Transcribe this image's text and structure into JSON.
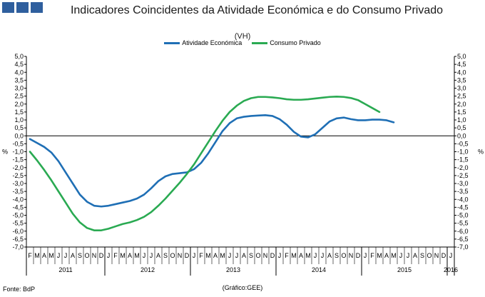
{
  "chart_data": {
    "type": "line",
    "title": "Indicadores Coincidentes da Atividade Económica e do Consumo Privado",
    "subtitle": "(VH)",
    "ylabel_left": "%",
    "ylabel_right": "%",
    "ylim": [
      -7.0,
      5.0
    ],
    "ytick_step": 0.5,
    "ytick_labels": [
      "5,0",
      "4,5",
      "4,0",
      "3,5",
      "3,0",
      "2,5",
      "2,0",
      "1,5",
      "1,0",
      "0,5",
      "0,0",
      "-0,5",
      "-1,0",
      "-1,5",
      "-2,0",
      "-2,5",
      "-3,0",
      "-3,5",
      "-4,0",
      "-4,5",
      "-5,0",
      "-5,5",
      "-6,0",
      "-6,5",
      "-7,0"
    ],
    "month_labels": [
      "F",
      "M",
      "A",
      "M",
      "J",
      "J",
      "A",
      "S",
      "O",
      "N",
      "D",
      "J",
      "F",
      "M",
      "A",
      "M",
      "J",
      "J",
      "A",
      "S",
      "O",
      "N",
      "D",
      "J",
      "F",
      "M",
      "A",
      "M",
      "J",
      "J",
      "A",
      "S",
      "O",
      "N",
      "D",
      "J",
      "F",
      "M",
      "A",
      "M",
      "J",
      "J",
      "A",
      "S",
      "O",
      "N",
      "D",
      "J",
      "F",
      "M",
      "A",
      "M",
      "J",
      "J",
      "A",
      "S",
      "O",
      "N",
      "D",
      "J"
    ],
    "year_labels": [
      "2011",
      "2012",
      "2013",
      "2014",
      "2015",
      "2016"
    ],
    "legend_position": "top-center",
    "series": [
      {
        "name": "Atividade Económica",
        "color": "#1f6fb5",
        "values": [
          -0.2,
          -0.45,
          -0.7,
          -1.05,
          -1.6,
          -2.3,
          -3.0,
          -3.7,
          -4.15,
          -4.4,
          -4.45,
          -4.4,
          -4.3,
          -4.2,
          -4.1,
          -3.95,
          -3.7,
          -3.3,
          -2.85,
          -2.55,
          -2.4,
          -2.35,
          -2.3,
          -2.1,
          -1.7,
          -1.1,
          -0.4,
          0.3,
          0.8,
          1.1,
          1.2,
          1.25,
          1.28,
          1.3,
          1.25,
          1.05,
          0.7,
          0.25,
          -0.05,
          -0.1,
          0.1,
          0.5,
          0.9,
          1.1,
          1.15,
          1.05,
          0.98,
          0.98,
          1.02,
          1.02,
          0.98,
          0.85
        ]
      },
      {
        "name": "Consumo Privado",
        "color": "#2aaa52",
        "values": [
          -1.0,
          -1.55,
          -2.15,
          -2.8,
          -3.5,
          -4.2,
          -4.9,
          -5.45,
          -5.8,
          -5.95,
          -5.95,
          -5.85,
          -5.7,
          -5.55,
          -5.45,
          -5.3,
          -5.1,
          -4.8,
          -4.4,
          -3.95,
          -3.45,
          -2.95,
          -2.4,
          -1.8,
          -1.1,
          -0.4,
          0.3,
          0.95,
          1.5,
          1.9,
          2.2,
          2.37,
          2.45,
          2.45,
          2.42,
          2.37,
          2.3,
          2.27,
          2.27,
          2.3,
          2.35,
          2.4,
          2.45,
          2.47,
          2.45,
          2.38,
          2.25,
          2.0,
          1.75,
          1.5
        ]
      }
    ]
  },
  "source": "Fonte: BdP",
  "credit": "(Gráfico:GEE)"
}
